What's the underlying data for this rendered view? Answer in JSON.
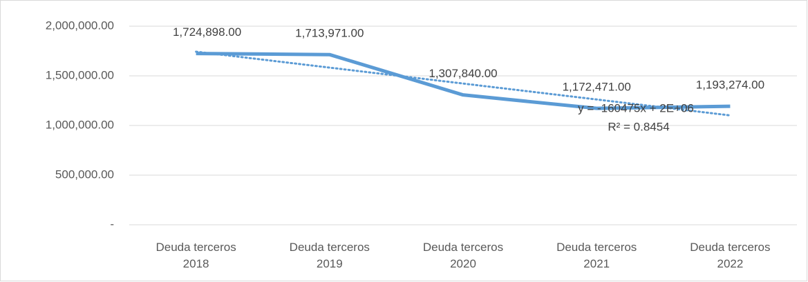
{
  "chart_data": {
    "type": "line",
    "categories": [
      [
        "Deuda terceros",
        "2018"
      ],
      [
        "Deuda terceros",
        "2019"
      ],
      [
        "Deuda terceros",
        "2020"
      ],
      [
        "Deuda terceros",
        "2021"
      ],
      [
        "Deuda terceros",
        "2022"
      ]
    ],
    "series": [
      {
        "color": "#5b9bd5",
        "values": [
          1724898,
          1713971,
          1307840,
          1172471,
          1193274
        ],
        "value_labels": [
          "1,724,898.00",
          "1,713,971.00",
          "1,307,840.00",
          "1,172,471.00",
          "1,193,274.00"
        ]
      }
    ],
    "trendline": {
      "color": "#5b9bd5",
      "values": [
        1743441,
        1582966,
        1422491,
        1262016,
        1101541
      ],
      "equation": "y = -160475x + 2E+06",
      "r_squared": "R² = 0.8454"
    },
    "ylim": [
      0,
      2000000
    ],
    "yticks": [
      {
        "value": 0,
        "label": "-"
      },
      {
        "value": 500000,
        "label": "500,000.00"
      },
      {
        "value": 1000000,
        "label": "1,000,000.00"
      },
      {
        "value": 1500000,
        "label": "1,500,000.00"
      },
      {
        "value": 2000000,
        "label": "2,000,000.00"
      }
    ],
    "grid": true
  }
}
